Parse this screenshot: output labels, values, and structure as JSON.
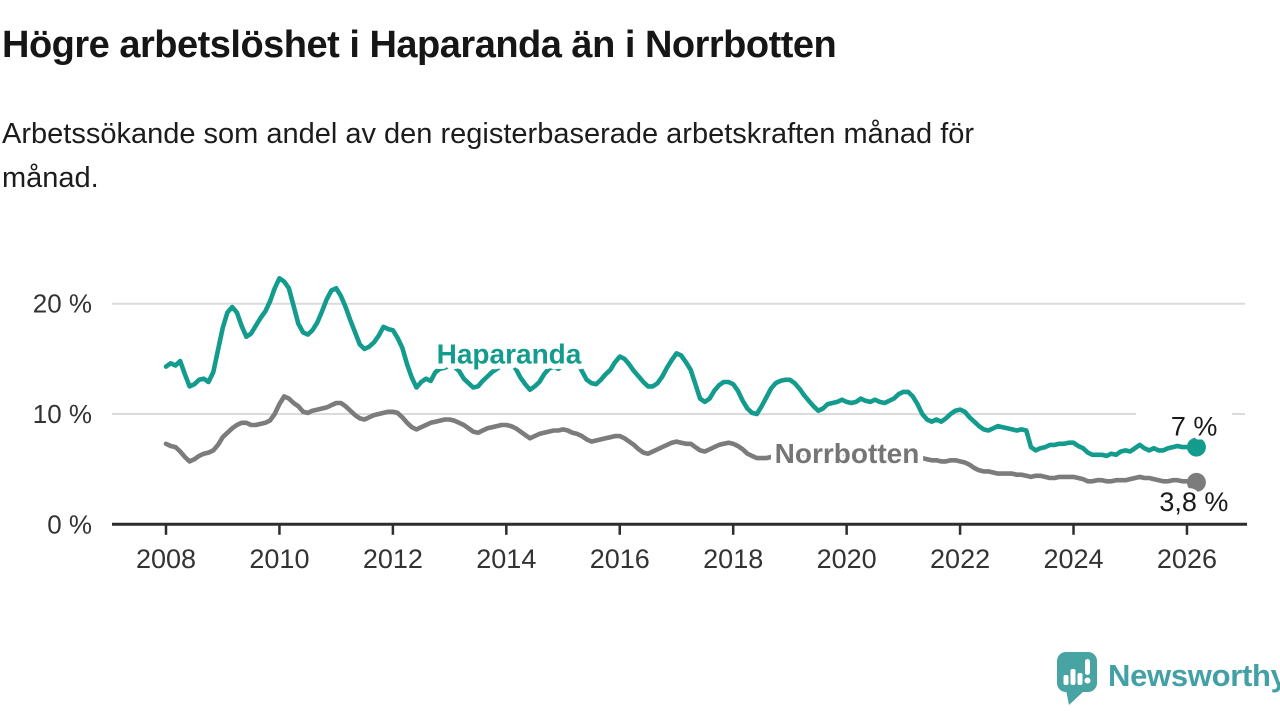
{
  "header": {
    "title": "Högre arbetslöshet i Haparanda än i Norrbotten",
    "subtitle_line1": "Arbetssökande som andel av den registerbaserade arbetskraften månad för",
    "subtitle_line2": "månad."
  },
  "chart_data": {
    "type": "line",
    "x_unit": "year-month",
    "y_unit": "%",
    "x_start": 2008.0,
    "x_step_months": 1,
    "xlim": [
      2007.0,
      2027.1
    ],
    "ylim": [
      0,
      23
    ],
    "grid": true,
    "y_ticks": [
      {
        "value": 0,
        "label": "0 %"
      },
      {
        "value": 10,
        "label": "10 %"
      },
      {
        "value": 20,
        "label": "20 %"
      }
    ],
    "x_ticks": [
      2008,
      2010,
      2012,
      2014,
      2016,
      2018,
      2020,
      2022,
      2024,
      2026
    ],
    "series": [
      {
        "name": "Haparanda",
        "color": "#139c8d",
        "end_label": "7 %",
        "values": [
          14.3,
          14.6,
          14.4,
          14.8,
          13.6,
          12.5,
          12.7,
          13.1,
          13.2,
          12.9,
          13.8,
          15.8,
          17.8,
          19.2,
          19.7,
          19.2,
          18.0,
          17.0,
          17.3,
          18.0,
          18.7,
          19.3,
          20.2,
          21.4,
          22.3,
          22.0,
          21.4,
          19.8,
          18.2,
          17.4,
          17.2,
          17.6,
          18.3,
          19.3,
          20.4,
          21.2,
          21.4,
          20.7,
          19.7,
          18.5,
          17.4,
          16.3,
          15.9,
          16.1,
          16.5,
          17.1,
          17.9,
          17.7,
          17.6,
          16.9,
          16.0,
          14.5,
          13.3,
          12.4,
          12.9,
          13.2,
          13.0,
          13.8,
          14.1,
          14.2,
          14.4,
          14.3,
          13.9,
          13.2,
          12.8,
          12.4,
          12.5,
          13.0,
          13.4,
          13.8,
          14.1,
          14.4,
          14.6,
          14.5,
          14.1,
          13.3,
          12.7,
          12.2,
          12.5,
          12.9,
          13.6,
          14.1,
          14.3,
          14.1,
          14.4,
          14.8,
          15.2,
          14.7,
          13.9,
          13.1,
          12.8,
          12.7,
          13.1,
          13.6,
          14.0,
          14.7,
          15.2,
          15.0,
          14.5,
          13.9,
          13.4,
          12.9,
          12.5,
          12.5,
          12.8,
          13.4,
          14.2,
          14.9,
          15.5,
          15.3,
          14.7,
          14.0,
          12.7,
          11.4,
          11.1,
          11.4,
          12.1,
          12.6,
          12.9,
          12.9,
          12.7,
          12.1,
          11.2,
          10.5,
          10.1,
          10.0,
          10.7,
          11.5,
          12.3,
          12.8,
          13.0,
          13.1,
          13.1,
          12.8,
          12.3,
          11.7,
          11.2,
          10.7,
          10.3,
          10.5,
          10.9,
          11.0,
          11.1,
          11.3,
          11.1,
          11.0,
          11.1,
          11.4,
          11.2,
          11.1,
          11.3,
          11.1,
          11.0,
          11.2,
          11.4,
          11.8,
          12.0,
          12.0,
          11.6,
          10.9,
          10.0,
          9.5,
          9.3,
          9.5,
          9.3,
          9.6,
          10.0,
          10.3,
          10.4,
          10.2,
          9.7,
          9.3,
          8.9,
          8.6,
          8.5,
          8.7,
          8.9,
          8.8,
          8.7,
          8.6,
          8.5,
          8.6,
          8.5,
          7.0,
          6.7,
          6.9,
          7.0,
          7.2,
          7.2,
          7.3,
          7.3,
          7.4,
          7.4,
          7.1,
          6.9,
          6.5,
          6.3,
          6.3,
          6.3,
          6.2,
          6.4,
          6.3,
          6.6,
          6.7,
          6.6,
          6.9,
          7.2,
          6.9,
          6.7,
          6.9,
          6.7,
          6.7,
          6.9,
          7.0,
          7.1,
          7.0,
          7.0,
          7.0,
          7.0
        ]
      },
      {
        "name": "Norrbotten",
        "color": "#7c7c7c",
        "end_label": "3,8 %",
        "values": [
          7.3,
          7.1,
          7.0,
          6.6,
          6.1,
          5.7,
          5.9,
          6.2,
          6.4,
          6.5,
          6.7,
          7.2,
          7.9,
          8.3,
          8.7,
          9.0,
          9.2,
          9.2,
          9.0,
          9.0,
          9.1,
          9.2,
          9.4,
          10.0,
          10.9,
          11.6,
          11.4,
          11.0,
          10.7,
          10.2,
          10.1,
          10.3,
          10.4,
          10.5,
          10.6,
          10.8,
          11.0,
          11.0,
          10.7,
          10.3,
          9.9,
          9.6,
          9.5,
          9.7,
          9.9,
          10.0,
          10.1,
          10.2,
          10.2,
          10.1,
          9.7,
          9.2,
          8.8,
          8.6,
          8.8,
          9.0,
          9.2,
          9.3,
          9.4,
          9.5,
          9.5,
          9.4,
          9.2,
          9.0,
          8.7,
          8.4,
          8.3,
          8.5,
          8.7,
          8.8,
          8.9,
          9.0,
          9.0,
          8.9,
          8.7,
          8.4,
          8.1,
          7.8,
          8.0,
          8.2,
          8.3,
          8.4,
          8.5,
          8.5,
          8.6,
          8.5,
          8.3,
          8.2,
          8.0,
          7.7,
          7.5,
          7.6,
          7.7,
          7.8,
          7.9,
          8.0,
          8.0,
          7.8,
          7.5,
          7.2,
          6.8,
          6.5,
          6.4,
          6.6,
          6.8,
          7.0,
          7.2,
          7.4,
          7.5,
          7.4,
          7.3,
          7.3,
          7.0,
          6.7,
          6.6,
          6.8,
          7.0,
          7.2,
          7.3,
          7.4,
          7.3,
          7.1,
          6.8,
          6.4,
          6.2,
          6.0,
          6.0,
          6.0,
          6.1,
          6.2,
          6.3,
          6.4,
          6.4,
          6.3,
          6.1,
          6.0,
          5.8,
          5.7,
          5.7,
          5.8,
          5.8,
          5.9,
          6.0,
          6.1,
          6.2,
          6.3,
          6.4,
          6.6,
          6.7,
          6.7,
          6.6,
          6.6,
          6.6,
          6.6,
          6.6,
          6.6,
          6.5,
          6.4,
          6.3,
          6.1,
          6.0,
          5.9,
          5.8,
          5.8,
          5.7,
          5.7,
          5.8,
          5.8,
          5.7,
          5.6,
          5.4,
          5.1,
          4.9,
          4.8,
          4.8,
          4.7,
          4.6,
          4.6,
          4.6,
          4.6,
          4.5,
          4.5,
          4.4,
          4.3,
          4.4,
          4.4,
          4.3,
          4.2,
          4.2,
          4.3,
          4.3,
          4.3,
          4.3,
          4.2,
          4.1,
          3.9,
          3.9,
          4.0,
          4.0,
          3.9,
          3.9,
          4.0,
          4.0,
          4.0,
          4.1,
          4.2,
          4.3,
          4.2,
          4.2,
          4.1,
          4.0,
          3.9,
          3.9,
          4.0,
          4.0,
          3.9,
          3.9,
          3.8,
          3.8
        ]
      }
    ],
    "colors": {
      "haparanda": "#139c8d",
      "norrbotten": "#7c7c7c",
      "gridline": "#dbdbdb",
      "axis": "#2d2d2d",
      "tick_text": "#333333",
      "value_text": "#1a1a1a"
    }
  },
  "footer": {
    "brand": "Newsworthy"
  }
}
